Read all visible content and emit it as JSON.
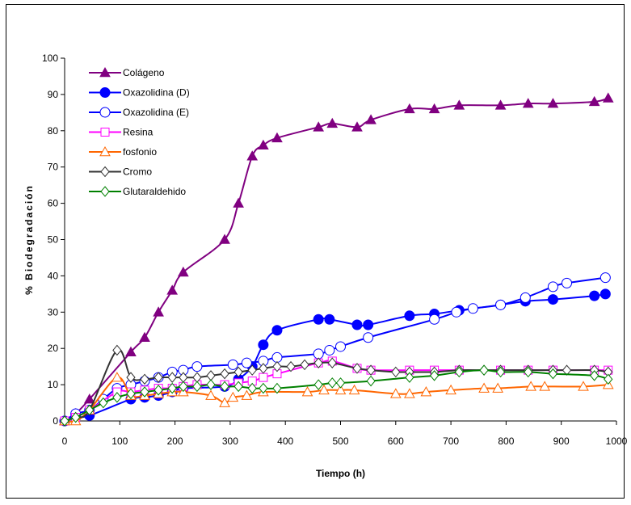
{
  "chart_data": {
    "type": "line",
    "title": "",
    "xlabel": "Tiempo (h)",
    "ylabel": "% Biodegradación",
    "xlim": [
      0,
      1000
    ],
    "ylim": [
      0,
      100
    ],
    "xticks": [
      0,
      100,
      200,
      300,
      400,
      500,
      600,
      700,
      800,
      900,
      1000
    ],
    "yticks": [
      0,
      10,
      20,
      30,
      40,
      50,
      60,
      70,
      80,
      90,
      100
    ],
    "grid": false,
    "legend_position": "top-left",
    "series": [
      {
        "name": "Colágeno",
        "color": "#800080",
        "marker": "triangle-filled",
        "x": [
          0,
          20,
          45,
          120,
          145,
          170,
          195,
          215,
          290,
          315,
          340,
          360,
          385,
          460,
          485,
          530,
          555,
          625,
          670,
          715,
          790,
          840,
          885,
          960,
          985
        ],
        "y": [
          0,
          2,
          6,
          19,
          23,
          30,
          36,
          41,
          50,
          60,
          73,
          76,
          78,
          81,
          82,
          81,
          83,
          86,
          86,
          87,
          87,
          87.5,
          87.5,
          88,
          89
        ]
      },
      {
        "name": "Oxazolidina (D)",
        "color": "#0000ff",
        "marker": "circle-filled",
        "x": [
          0,
          20,
          45,
          120,
          145,
          170,
          195,
          215,
          290,
          315,
          340,
          360,
          385,
          460,
          480,
          530,
          550,
          625,
          670,
          715,
          790,
          835,
          885,
          960,
          980
        ],
        "y": [
          0,
          1,
          1.5,
          6,
          6.5,
          7,
          8,
          9,
          9.5,
          11.5,
          15,
          21,
          25,
          28,
          28,
          26.5,
          26.5,
          29,
          29.5,
          30.5,
          32,
          33,
          33.5,
          34.5,
          35
        ]
      },
      {
        "name": "Oxazolidina (E)",
        "color": "#0000ff",
        "marker": "circle-open",
        "x": [
          0,
          20,
          45,
          70,
          95,
          120,
          145,
          170,
          195,
          215,
          240,
          305,
          330,
          360,
          385,
          460,
          480,
          500,
          550,
          670,
          710,
          740,
          790,
          835,
          885,
          910,
          980
        ],
        "y": [
          0,
          2,
          3,
          6,
          9,
          10,
          11,
          12,
          13.5,
          14,
          15,
          15.5,
          16,
          16.5,
          17.5,
          18.5,
          19.5,
          20.5,
          23,
          28,
          30,
          31,
          32,
          34,
          37,
          38,
          39.5
        ]
      },
      {
        "name": "Resina",
        "color": "#ff00ff",
        "marker": "square-open",
        "x": [
          0,
          20,
          45,
          95,
          120,
          145,
          170,
          195,
          215,
          240,
          290,
          315,
          340,
          360,
          385,
          460,
          485,
          530,
          555,
          625,
          670,
          715,
          790,
          840,
          885,
          960,
          985
        ],
        "y": [
          0,
          1,
          3,
          8,
          8,
          8.5,
          9,
          9,
          9.5,
          10,
          10,
          10.5,
          11,
          12,
          13,
          16,
          16.5,
          14.5,
          14,
          14,
          14,
          14,
          14,
          14,
          14,
          14,
          14
        ]
      },
      {
        "name": "fosfonio",
        "color": "#ff6600",
        "marker": "triangle-open",
        "x": [
          0,
          20,
          45,
          95,
          120,
          145,
          170,
          195,
          215,
          265,
          290,
          305,
          330,
          360,
          440,
          470,
          500,
          525,
          600,
          625,
          655,
          700,
          760,
          785,
          845,
          870,
          940,
          985
        ],
        "y": [
          0,
          0,
          3,
          12,
          7,
          7,
          7.5,
          8,
          8,
          7,
          5,
          6.5,
          7,
          8,
          8,
          8.5,
          8.5,
          8.5,
          7.5,
          7.5,
          8,
          8.5,
          9,
          9,
          9.5,
          9.5,
          9.5,
          10
        ]
      },
      {
        "name": "Cromo",
        "color": "#333333",
        "marker": "diamond-open",
        "x": [
          0,
          20,
          45,
          95,
          120,
          145,
          170,
          195,
          215,
          240,
          265,
          290,
          315,
          340,
          360,
          385,
          410,
          435,
          460,
          485,
          530,
          555,
          600,
          625,
          670,
          715,
          760,
          790,
          840,
          885,
          910,
          960,
          985
        ],
        "y": [
          0,
          1,
          3,
          19.5,
          12,
          11.5,
          12,
          12,
          12,
          12,
          12.5,
          13,
          13.5,
          14,
          14.5,
          15,
          15,
          15.5,
          16,
          16,
          14.5,
          14,
          13.5,
          13.5,
          13.5,
          14,
          14,
          14,
          14,
          14,
          14,
          14,
          13.5
        ]
      },
      {
        "name": "Glutaraldehido",
        "color": "#008000",
        "marker": "diamond-open",
        "x": [
          0,
          20,
          45,
          70,
          95,
          120,
          145,
          170,
          195,
          215,
          240,
          265,
          290,
          315,
          340,
          360,
          385,
          460,
          485,
          500,
          555,
          625,
          670,
          715,
          760,
          790,
          840,
          885,
          960,
          985
        ],
        "y": [
          0,
          1,
          3,
          5,
          6.5,
          7.5,
          8,
          8.5,
          9,
          9.5,
          9.5,
          10,
          9.5,
          9.5,
          9,
          9,
          9,
          10,
          10.5,
          10.5,
          11,
          12,
          12.5,
          13.5,
          14,
          13.5,
          13.5,
          13,
          12.5,
          11.5
        ]
      }
    ]
  }
}
